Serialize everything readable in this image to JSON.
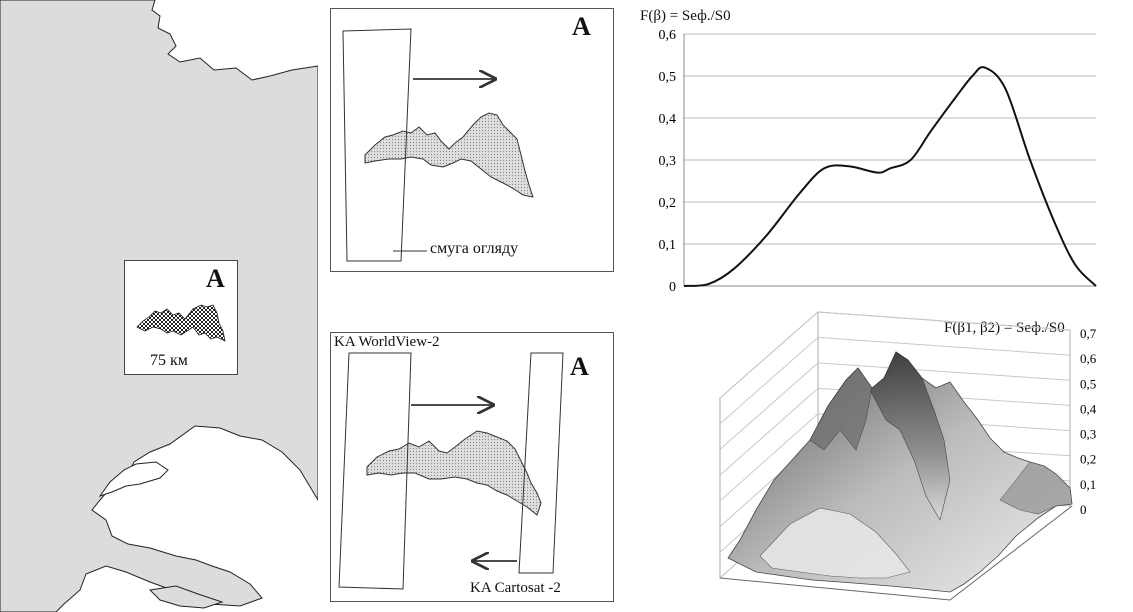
{
  "map": {
    "inset_label": "A",
    "scale_label": "75 км"
  },
  "panel_top": {
    "label": "A",
    "swath_label": "смуга огляду"
  },
  "panel_bottom": {
    "label": "A",
    "satellite1": "KA WorldView-2",
    "satellite2": "KA Cartosat -2"
  },
  "chart_data": [
    {
      "type": "line",
      "title": "F(β) = Sеф./S0",
      "ylim": [
        0,
        0.6
      ],
      "yticks": [
        "0",
        "0,1",
        "0,2",
        "0,3",
        "0,4",
        "0,5",
        "0,6"
      ],
      "grid": true,
      "series": [
        {
          "x": [
            0,
            0.06,
            0.12,
            0.2,
            0.28,
            0.34,
            0.4,
            0.47,
            0.5,
            0.55,
            0.6,
            0.66,
            0.7,
            0.73,
            0.78,
            0.84,
            0.9,
            0.95,
            1.0
          ],
          "values": [
            0,
            0.005,
            0.04,
            0.12,
            0.22,
            0.28,
            0.285,
            0.27,
            0.28,
            0.3,
            0.37,
            0.45,
            0.5,
            0.52,
            0.47,
            0.3,
            0.15,
            0.05,
            0
          ]
        }
      ]
    },
    {
      "type": "surface",
      "title": "F(β1, β2) = Sеф./S0",
      "zticks": [
        "0",
        "0,1",
        "0,2",
        "0,3",
        "0,4",
        "0,5",
        "0,6",
        "0,7"
      ]
    }
  ]
}
